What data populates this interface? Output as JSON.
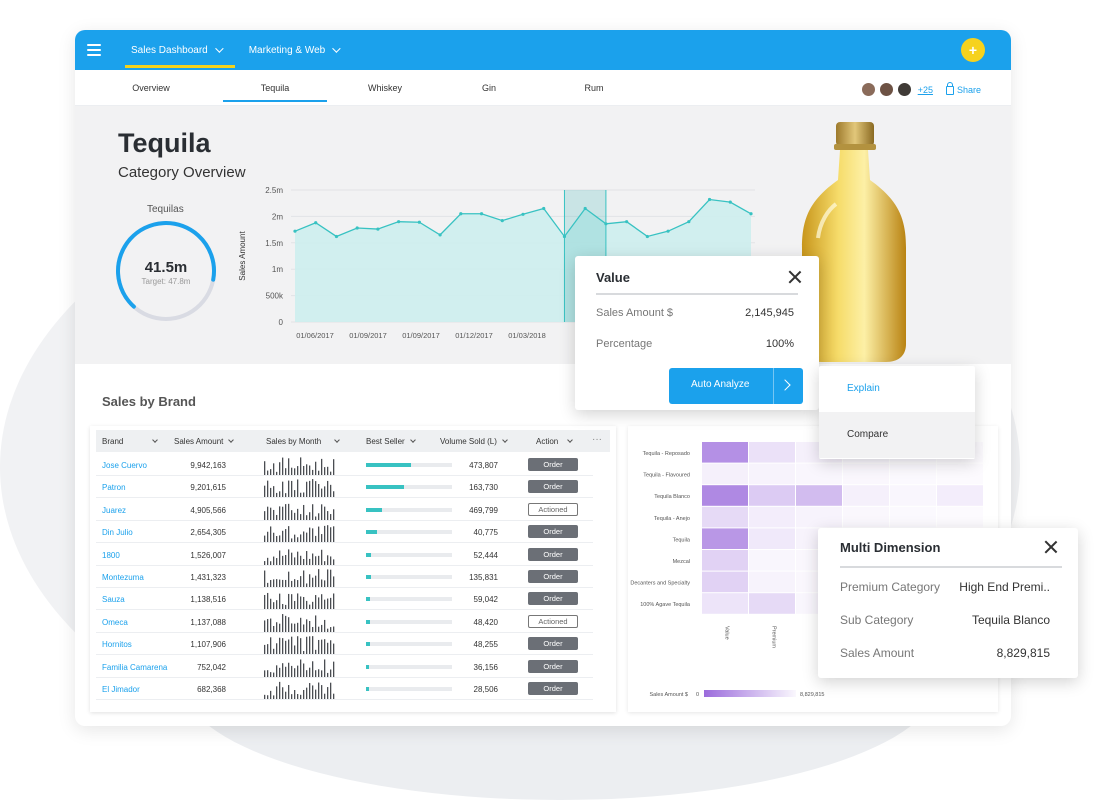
{
  "topbar": {
    "tabs": [
      {
        "label": "Sales Dashboard",
        "active": true
      },
      {
        "label": "Marketing & Web",
        "active": false
      }
    ],
    "add_symbol": "+"
  },
  "subnav": {
    "tabs": [
      "Overview",
      "Tequila",
      "Whiskey",
      "Gin",
      "Rum"
    ],
    "active": "Tequila",
    "more_count": "+25",
    "share_label": "Share"
  },
  "hero": {
    "title": "Tequila",
    "subtitle": "Category Overview",
    "gauge": {
      "label": "Tequilas",
      "value": "41.5m",
      "target": "Target: 47.8m",
      "fraction": 0.87
    }
  },
  "chart_data": {
    "type": "area",
    "ylabel": "Sales Amount",
    "yticks": [
      "0",
      "500k",
      "1m",
      "1.5m",
      "2m",
      "2.5m"
    ],
    "ylim": [
      0,
      2500000
    ],
    "xticks": [
      "01/06/2017",
      "01/09/2017",
      "01/09/2017",
      "01/12/2017",
      "01/03/2018"
    ],
    "values": [
      1720000,
      1880000,
      1620000,
      1780000,
      1760000,
      1900000,
      1890000,
      1650000,
      2050000,
      2050000,
      1920000,
      2040000,
      2150000,
      1620000,
      2150000,
      1860000,
      1900000,
      1620000,
      1720000,
      1900000,
      2320000,
      2270000,
      2050000
    ],
    "grid": true
  },
  "value_popup": {
    "title": "Value",
    "rows": [
      {
        "key": "Sales Amount $",
        "value": "2,145,945"
      },
      {
        "key": "Percentage",
        "value": "100%"
      }
    ],
    "button": "Auto Analyze"
  },
  "menu": {
    "explain": "Explain",
    "compare": "Compare"
  },
  "sales_by_brand": {
    "title": "Sales by Brand",
    "columns": [
      "Brand",
      "Sales Amount",
      "Sales by Month",
      "Best Seller",
      "Volume Sold (L)",
      "Action"
    ],
    "more_symbol": "···",
    "rows": [
      {
        "brand": "Jose Cuervo",
        "amount": "9,942,163",
        "best": 0.52,
        "volume": "473,807",
        "action": "Order"
      },
      {
        "brand": "Patron",
        "amount": "9,201,615",
        "best": 0.44,
        "volume": "163,730",
        "action": "Order"
      },
      {
        "brand": "Juarez",
        "amount": "4,905,566",
        "best": 0.19,
        "volume": "469,799",
        "action": "Actioned"
      },
      {
        "brand": "Din Julio",
        "amount": "2,654,305",
        "best": 0.13,
        "volume": "40,775",
        "action": "Order"
      },
      {
        "brand": "1800",
        "amount": "1,526,007",
        "best": 0.06,
        "volume": "52,444",
        "action": "Order"
      },
      {
        "brand": "Montezuma",
        "amount": "1,431,323",
        "best": 0.06,
        "volume": "135,831",
        "action": "Order"
      },
      {
        "brand": "Sauza",
        "amount": "1,138,516",
        "best": 0.05,
        "volume": "59,042",
        "action": "Order"
      },
      {
        "brand": "Omeca",
        "amount": "1,137,088",
        "best": 0.05,
        "volume": "48,420",
        "action": "Actioned"
      },
      {
        "brand": "Hornitos",
        "amount": "1,107,906",
        "best": 0.05,
        "volume": "48,255",
        "action": "Order"
      },
      {
        "brand": "Familia Camarena",
        "amount": "752,042",
        "best": 0.04,
        "volume": "36,156",
        "action": "Order"
      },
      {
        "brand": "El Jimador",
        "amount": "682,368",
        "best": 0.04,
        "volume": "28,506",
        "action": "Order"
      }
    ]
  },
  "heatmap": {
    "rows": [
      "Tequila - Reposado",
      "Tequila - Flavoured",
      "Tequila Blanco",
      "Tequila - Anejo",
      "Tequila",
      "Mezcal",
      "Decanters and Specialty",
      "100% Agave Tequila"
    ],
    "cols": [
      "Value",
      "Premium"
    ],
    "legend_label": "Sales Amount $",
    "legend_min": "0",
    "legend_max": "8,829,815",
    "base_color": "#9b6bdc"
  },
  "multi_dimension": {
    "title": "Multi Dimension",
    "rows": [
      {
        "key": "Premium Category",
        "value": "High End Premi.."
      },
      {
        "key": "Sub Category",
        "value": "Tequila Blanco"
      },
      {
        "key": "Sales Amount",
        "value": "8,829,815"
      }
    ]
  },
  "colors": {
    "primary": "#1ba1ec",
    "accent": "#f6d21d",
    "teal": "#38c2c2"
  }
}
